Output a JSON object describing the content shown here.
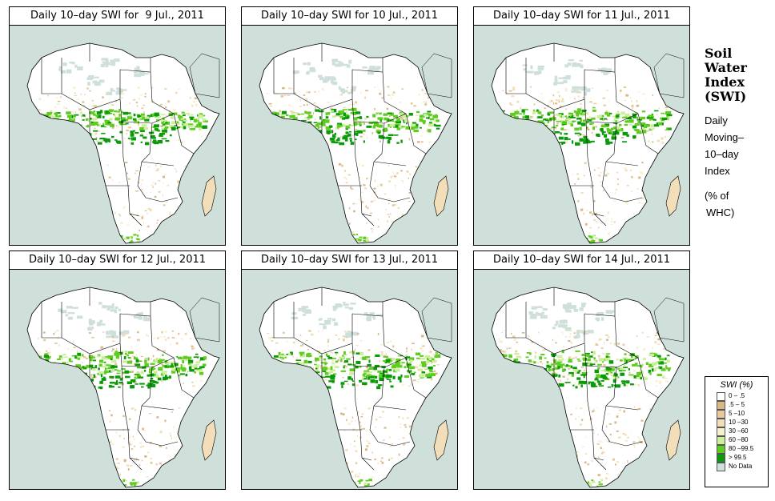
{
  "panels": [
    {
      "title": "Daily 10–day SWI for  9 Jul., 2011"
    },
    {
      "title": "Daily 10–day SWI for 10 Jul., 2011"
    },
    {
      "title": "Daily 10–day SWI for 11 Jul., 2011"
    },
    {
      "title": "Daily 10–day SWI for 12 Jul., 2011"
    },
    {
      "title": "Daily 10–day SWI for 13 Jul., 2011"
    },
    {
      "title": "Daily 10–day SWI for 14 Jul., 2011"
    }
  ],
  "sidebar": {
    "title_lines": [
      "Soil",
      "Water",
      "Index",
      "(SWI)"
    ],
    "desc_lines": [
      "Daily",
      "Moving–",
      "10–day",
      "Index"
    ],
    "unit_lines": [
      "(% of",
      "WHC)"
    ]
  },
  "legend": {
    "title": "SWI (%)",
    "items": [
      {
        "label": "0 – .5",
        "color": "#ffffff"
      },
      {
        "label": ".5 – 5",
        "color": "#d9b888"
      },
      {
        "label": "5 –10",
        "color": "#e6c99d"
      },
      {
        "label": "10 –30",
        "color": "#f2deb9"
      },
      {
        "label": "30 –60",
        "color": "#f7f0cf"
      },
      {
        "label": "60 –80",
        "color": "#cdef9c"
      },
      {
        "label": "80 –99.5",
        "color": "#5fcc21"
      },
      {
        "label": "> 99.5",
        "color": "#0a9a0a"
      },
      {
        "label": "No Data",
        "color": "#cfdfd9"
      }
    ]
  }
}
